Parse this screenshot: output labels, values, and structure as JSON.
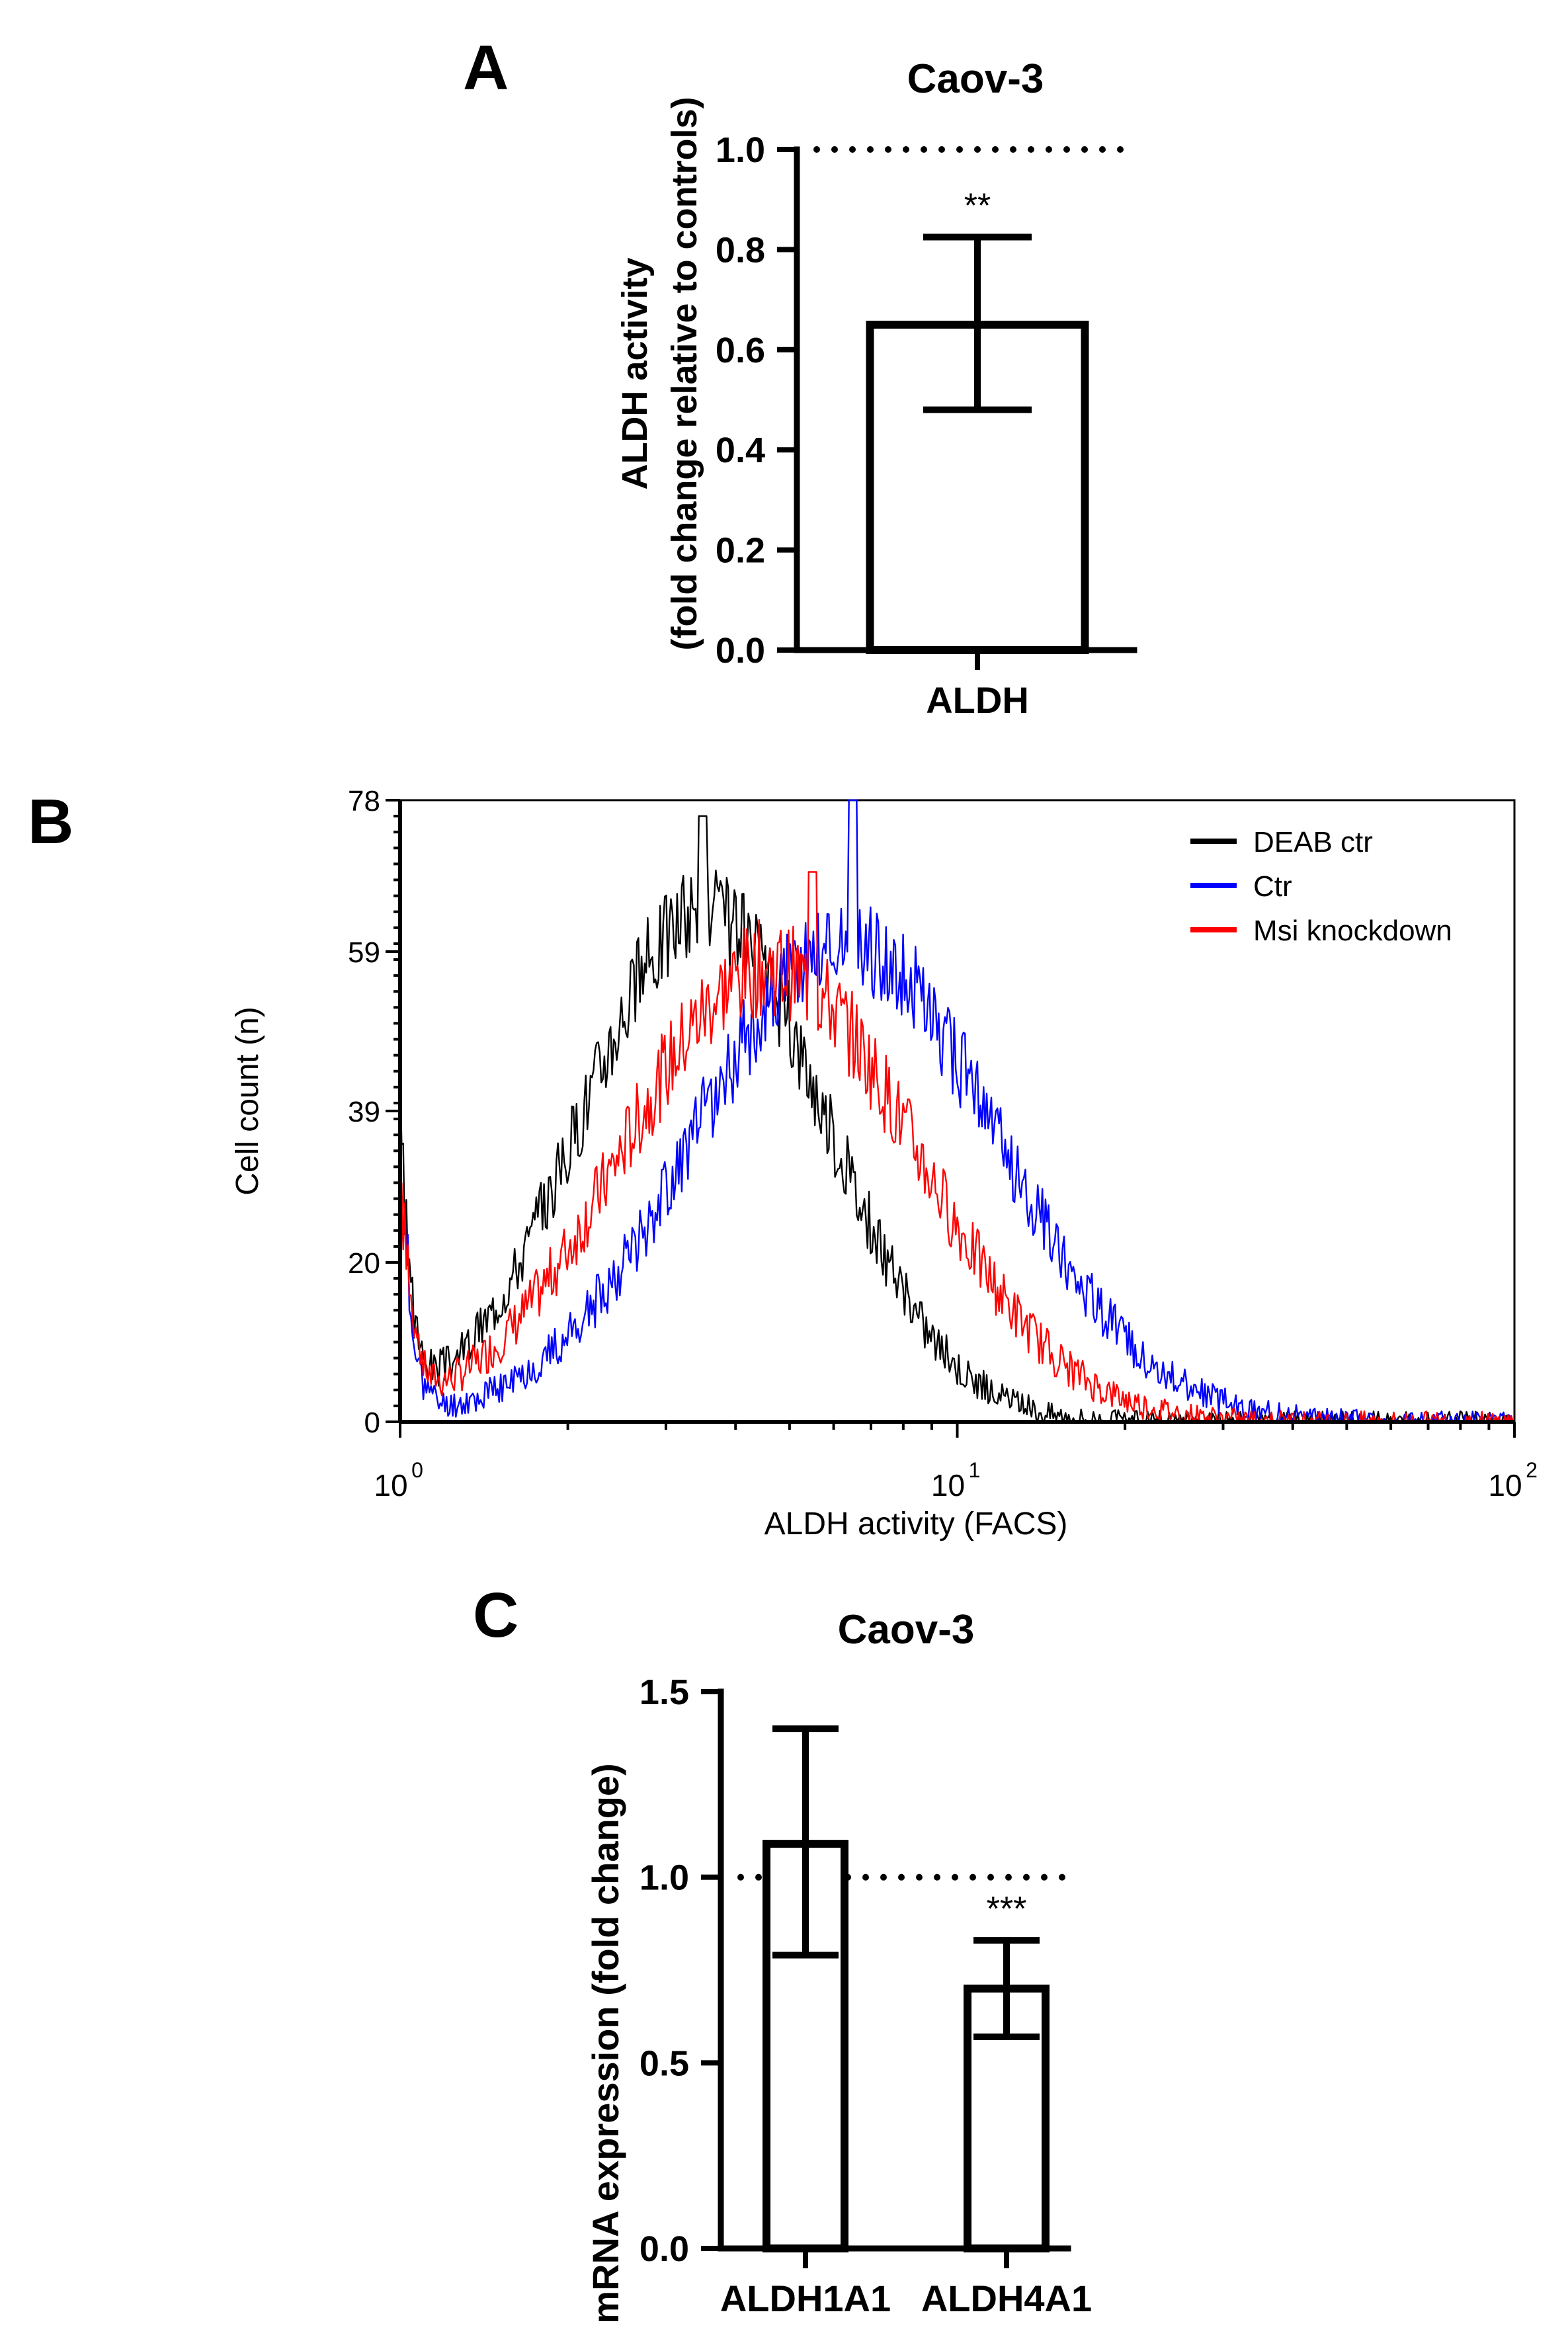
{
  "panels": {
    "a": "A",
    "b": "B",
    "c": "C"
  },
  "colors": {
    "deab": "#000000",
    "ctr": "#0000ff",
    "msi": "#ff0000"
  },
  "chart_data": [
    {
      "id": "A",
      "type": "bar",
      "title": "Caov-3",
      "ylabel_line1": "ALDH activity",
      "ylabel_line2": "(fold change relative to controls)",
      "xlabel": "",
      "categories": [
        "ALDH"
      ],
      "values": [
        0.65
      ],
      "errors": [
        [
          0.48,
          0.825
        ]
      ],
      "significance": [
        "**"
      ],
      "ylim": [
        0,
        1.0
      ],
      "yticks": [
        0.0,
        0.2,
        0.4,
        0.6,
        0.8,
        1.0
      ],
      "ytick_labels": [
        "0.0",
        "0.2",
        "0.4",
        "0.6",
        "0.8",
        "1.0"
      ],
      "reference_line": 1.0
    },
    {
      "id": "B",
      "type": "line",
      "xlabel": "ALDH activity (FACS)",
      "ylabel": "Cell count (n)",
      "xscale": "log",
      "xlim": [
        1,
        100
      ],
      "ylim": [
        0,
        78
      ],
      "xticks": [
        1,
        10,
        100
      ],
      "xtick_bases": [
        "10",
        "10",
        "10"
      ],
      "xtick_exps": [
        "0",
        "1",
        "2"
      ],
      "yticks": [
        0,
        20,
        39,
        59,
        78
      ],
      "ytick_labels": [
        "0",
        "20",
        "39",
        "59",
        "78"
      ],
      "legend_position": "top-right",
      "series": [
        {
          "name": "DEAB ctr",
          "color": "#000000",
          "peak_x": 3.5,
          "sigma": 0.5,
          "amp": 64,
          "noise": 6,
          "spike_x": 3.5,
          "spike_y": 76,
          "seed": 3
        },
        {
          "name": "Ctr",
          "color": "#0000ff",
          "peak_x": 6.3,
          "sigma": 0.62,
          "amp": 60,
          "noise": 6,
          "spike_x": 6.5,
          "spike_y": 78,
          "seed": 11
        },
        {
          "name": "Msi knockdown",
          "color": "#ff0000",
          "peak_x": 4.6,
          "sigma": 0.6,
          "amp": 57,
          "noise": 6,
          "spike_x": 5.5,
          "spike_y": 69,
          "seed": 7
        }
      ]
    },
    {
      "id": "C",
      "type": "bar",
      "title": "Caov-3",
      "ylabel": "mRNA expression (fold change)",
      "xlabel": "",
      "categories": [
        "ALDH1A1",
        "ALDH4A1"
      ],
      "values": [
        1.09,
        0.7
      ],
      "errors": [
        [
          0.79,
          1.4
        ],
        [
          0.57,
          0.83
        ]
      ],
      "significance": [
        "",
        "***"
      ],
      "ylim": [
        0,
        1.5
      ],
      "yticks": [
        0.0,
        0.5,
        1.0,
        1.5
      ],
      "ytick_labels": [
        "0.0",
        "0.5",
        "1.0",
        "1.5"
      ],
      "reference_line": 1.0
    }
  ]
}
